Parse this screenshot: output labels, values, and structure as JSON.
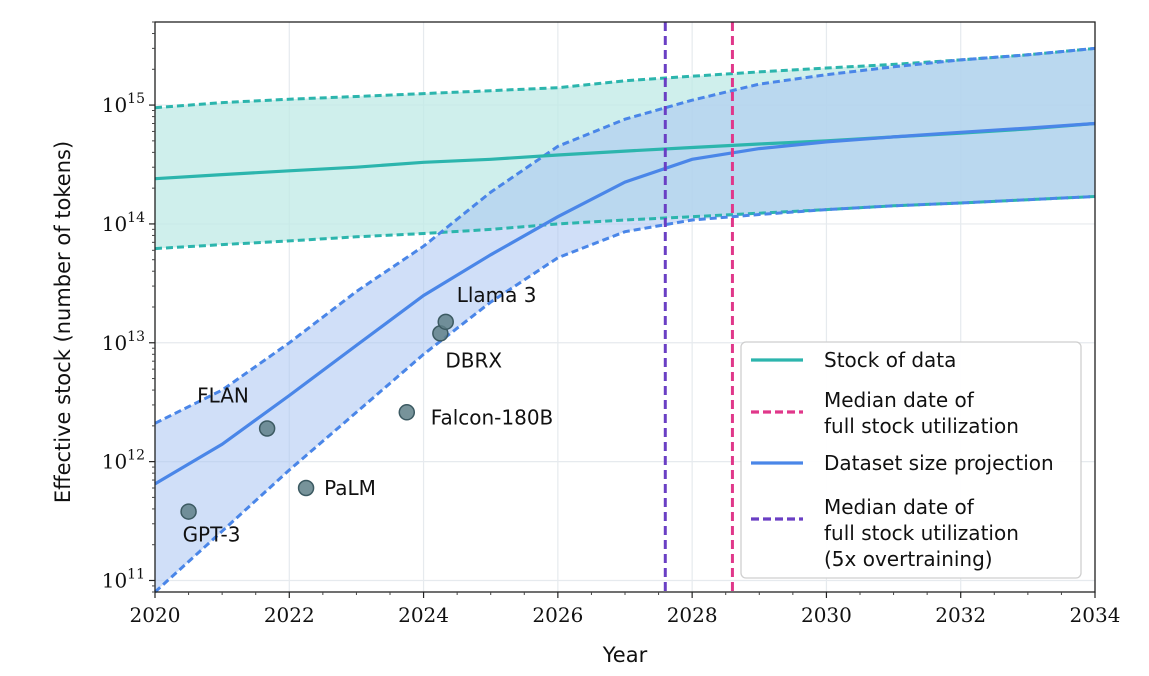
{
  "chart_data": {
    "type": "line",
    "xlabel": "Year",
    "ylabel": "Effective stock (number of tokens)",
    "xlim": [
      2020,
      2034
    ],
    "ylim": [
      80000000000.0,
      5000000000000000.0
    ],
    "yscale": "log",
    "grid": true,
    "xticks": [
      2020,
      2022,
      2024,
      2026,
      2028,
      2030,
      2032,
      2034
    ],
    "xtick_labels": [
      "2020",
      "2022",
      "2024",
      "2026",
      "2028",
      "2030",
      "2032",
      "2034"
    ],
    "yticks": [
      {
        "value": 100000000000.0,
        "base": "10",
        "exp": "11"
      },
      {
        "value": 1000000000000.0,
        "base": "10",
        "exp": "12"
      },
      {
        "value": 10000000000000.0,
        "base": "10",
        "exp": "13"
      },
      {
        "value": 100000000000000.0,
        "base": "10",
        "exp": "14"
      },
      {
        "value": 1000000000000000.0,
        "base": "10",
        "exp": "15"
      }
    ],
    "colors": {
      "stock": "#2cb5ad",
      "stock_fill": "#bfeae6",
      "projection": "#4a86e8",
      "projection_fill": "#a9c5f2",
      "median": "#e0378a",
      "median_overtrain": "#6a3fc4",
      "points": "#5f8088",
      "points_edge": "#3c5a62"
    },
    "series": [
      {
        "name": "Stock of data",
        "style": "solid",
        "x": [
          2020,
          2021,
          2022,
          2023,
          2024,
          2025,
          2026,
          2027,
          2028,
          2029,
          2030,
          2031,
          2032,
          2033,
          2034
        ],
        "y": [
          240000000000000.0,
          260000000000000.0,
          280000000000000.0,
          300000000000000.0,
          330000000000000.0,
          350000000000000.0,
          380000000000000.0,
          410000000000000.0,
          440000000000000.0,
          470000000000000.0,
          500000000000000.0,
          540000000000000.0,
          580000000000000.0,
          630000000000000.0,
          700000000000000.0
        ],
        "upper": [
          950000000000000.0,
          1050000000000000.0,
          1120000000000000.0,
          1180000000000000.0,
          1250000000000000.0,
          1320000000000000.0,
          1400000000000000.0,
          1600000000000000.0,
          1750000000000000.0,
          1900000000000000.0,
          2050000000000000.0,
          2200000000000000.0,
          2400000000000000.0,
          2650000000000000.0,
          3000000000000000.0
        ],
        "lower": [
          62000000000000.0,
          67000000000000.0,
          72000000000000.0,
          78000000000000.0,
          83000000000000.0,
          90000000000000.0,
          100000000000000.0,
          108000000000000.0,
          115000000000000.0,
          123000000000000.0,
          132000000000000.0,
          142000000000000.0,
          150000000000000.0,
          160000000000000.0,
          170000000000000.0
        ]
      },
      {
        "name": "Dataset size projection",
        "style": "solid",
        "x": [
          2020,
          2021,
          2022,
          2023,
          2024,
          2025,
          2026,
          2027,
          2028,
          2029,
          2030,
          2031,
          2032,
          2033,
          2034
        ],
        "y": [
          650000000000.0,
          1400000000000.0,
          3600000000000.0,
          9500000000000.0,
          25000000000000.0,
          55000000000000.0,
          115000000000000.0,
          225000000000000.0,
          350000000000000.0,
          430000000000000.0,
          490000000000000.0,
          540000000000000.0,
          590000000000000.0,
          640000000000000.0,
          700000000000000.0
        ],
        "upper": [
          2100000000000.0,
          4000000000000.0,
          10000000000000.0,
          27000000000000.0,
          65000000000000.0,
          185000000000000.0,
          450000000000000.0,
          760000000000000.0,
          1100000000000000.0,
          1500000000000000.0,
          1800000000000000.0,
          2100000000000000.0,
          2400000000000000.0,
          2650000000000000.0,
          3000000000000000.0
        ],
        "lower": [
          80000000000.0,
          260000000000.0,
          850000000000.0,
          2600000000000.0,
          8000000000000.0,
          22000000000000.0,
          52000000000000.0,
          86000000000000.0,
          108000000000000.0,
          120000000000000.0,
          132000000000000.0,
          142000000000000.0,
          150000000000000.0,
          160000000000000.0,
          170000000000000.0
        ]
      }
    ],
    "vlines": [
      {
        "name": "Median date of full stock utilization",
        "x": 2028.6,
        "style": "dashed"
      },
      {
        "name": "Median date of full stock utilization (5x overtraining)",
        "x": 2027.6,
        "style": "dashed"
      }
    ],
    "points": [
      {
        "label": "GPT-3",
        "x": 2020.5,
        "y": 380000000000.0
      },
      {
        "label": "FLAN",
        "x": 2021.67,
        "y": 1900000000000.0
      },
      {
        "label": "PaLM",
        "x": 2022.25,
        "y": 600000000000.0
      },
      {
        "label": "Falcon-180B",
        "x": 2023.75,
        "y": 2600000000000.0
      },
      {
        "label": "DBRX",
        "x": 2024.25,
        "y": 12000000000000.0
      },
      {
        "label": "Llama 3",
        "x": 2024.33,
        "y": 15000000000000.0
      }
    ],
    "legend": {
      "position": "lower-right",
      "entries": [
        {
          "lines": [
            "Stock of data"
          ],
          "style": "solid",
          "color_key": "stock"
        },
        {
          "lines": [
            "Median date of",
            "full stock utilization"
          ],
          "style": "dashed",
          "color_key": "median"
        },
        {
          "lines": [
            "Dataset size projection"
          ],
          "style": "solid",
          "color_key": "projection"
        },
        {
          "lines": [
            "Median date of",
            "full stock utilization",
            "(5x overtraining)"
          ],
          "style": "dashed",
          "color_key": "median_overtrain"
        }
      ]
    }
  }
}
